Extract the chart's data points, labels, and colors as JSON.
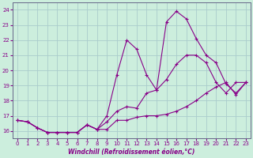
{
  "xlabel": "Windchill (Refroidissement éolien,°C)",
  "bg_color": "#cceedd",
  "grid_color": "#aacccc",
  "line_color": "#880088",
  "ylim": [
    15.5,
    24.5
  ],
  "xlim": [
    -0.5,
    23.5
  ],
  "yticks": [
    16,
    17,
    18,
    19,
    20,
    21,
    22,
    23,
    24
  ],
  "xticks": [
    0,
    1,
    2,
    3,
    4,
    5,
    6,
    7,
    8,
    9,
    10,
    11,
    12,
    13,
    14,
    15,
    16,
    17,
    18,
    19,
    20,
    21,
    22,
    23
  ],
  "series1_x": [
    0,
    1,
    2,
    3,
    4,
    5,
    6,
    7,
    8,
    9,
    10,
    11,
    12,
    13,
    14,
    15,
    16,
    17,
    18,
    19,
    20,
    21,
    22,
    23
  ],
  "series1_y": [
    16.7,
    16.6,
    16.2,
    15.9,
    15.9,
    15.9,
    15.9,
    16.4,
    16.1,
    16.1,
    16.7,
    16.7,
    16.9,
    17.0,
    17.0,
    17.1,
    17.3,
    17.6,
    18.0,
    18.5,
    18.9,
    19.2,
    18.4,
    19.2
  ],
  "series2_x": [
    0,
    1,
    2,
    3,
    4,
    5,
    6,
    7,
    8,
    9,
    10,
    11,
    12,
    13,
    14,
    15,
    16,
    17,
    18,
    19,
    20,
    21,
    22,
    23
  ],
  "series2_y": [
    16.7,
    16.6,
    16.2,
    15.9,
    15.9,
    15.9,
    15.9,
    16.4,
    16.1,
    17.0,
    19.7,
    22.0,
    21.4,
    19.7,
    18.7,
    23.2,
    23.9,
    23.4,
    22.1,
    21.0,
    20.5,
    19.1,
    18.5,
    19.2
  ],
  "series3_x": [
    0,
    1,
    2,
    3,
    4,
    5,
    6,
    7,
    8,
    9,
    10,
    11,
    12,
    13,
    14,
    15,
    16,
    17,
    18,
    19,
    20,
    21,
    22,
    23
  ],
  "series3_y": [
    16.7,
    16.6,
    16.2,
    15.9,
    15.9,
    15.9,
    15.9,
    16.4,
    16.1,
    16.6,
    17.3,
    17.6,
    17.5,
    18.5,
    18.7,
    19.4,
    20.4,
    21.0,
    21.0,
    20.5,
    19.2,
    18.5,
    19.2,
    19.2
  ]
}
